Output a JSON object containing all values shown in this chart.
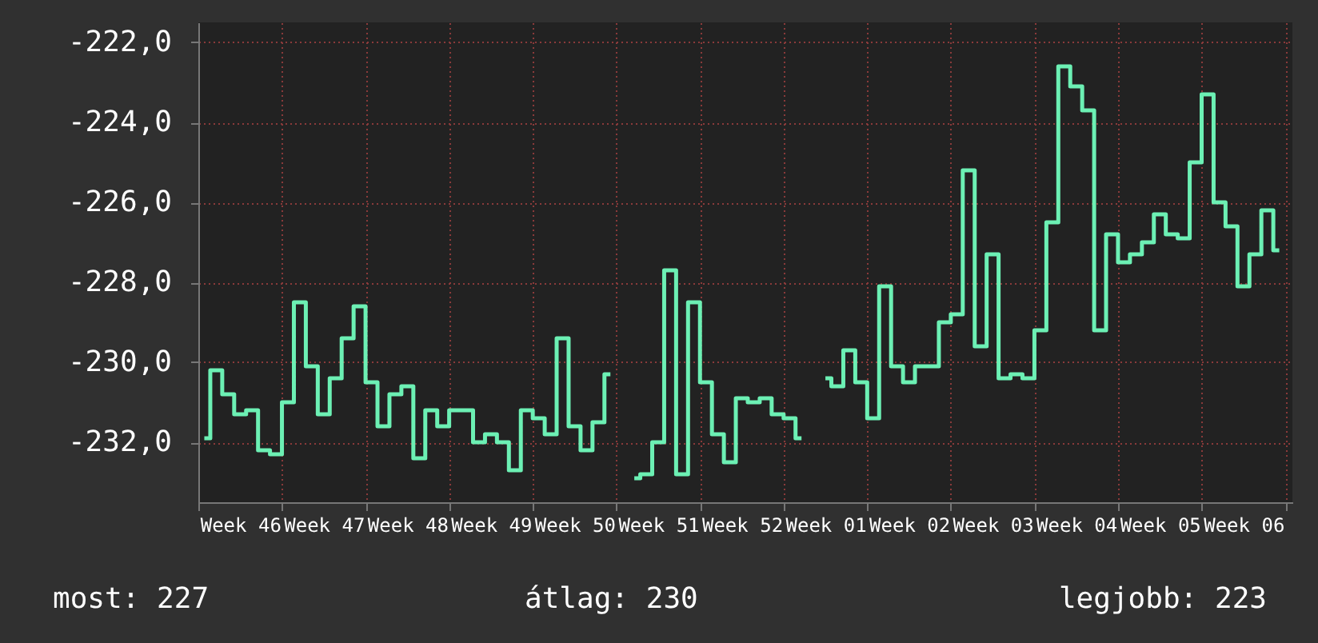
{
  "chart_data": {
    "type": "step",
    "categories": [
      null,
      null,
      null,
      "Week 46",
      null,
      null,
      null,
      null,
      null,
      null,
      "Week 47",
      null,
      null,
      null,
      null,
      null,
      null,
      "Week 48",
      null,
      null,
      null,
      null,
      null,
      null,
      "Week 49",
      null,
      null,
      null,
      null,
      null,
      null,
      "Week 50",
      null,
      null,
      null,
      null,
      null,
      null,
      "Week 51",
      null,
      null,
      null,
      null,
      null,
      null,
      "Week 52",
      null,
      null,
      null,
      null,
      null,
      null,
      "Week 01",
      null,
      null,
      null,
      null,
      null,
      null,
      "Week 02",
      null,
      null,
      null,
      null,
      null,
      null,
      "Week 03",
      null,
      null,
      null,
      null,
      null,
      null,
      "Week 04",
      null,
      null,
      null,
      null,
      null,
      null,
      "Week 05",
      null,
      null,
      null,
      null,
      null,
      null,
      "Week 06",
      null,
      null,
      null
    ],
    "series": [
      {
        "color": "#6cf0b4",
        "values": [
          -231.9,
          -230.2,
          -230.8,
          -231.3,
          -231.2,
          -232.2,
          -232.3,
          -231.0,
          -228.5,
          -230.1,
          -231.3,
          -230.4,
          -229.4,
          -228.6,
          -230.5,
          -231.6,
          -230.8,
          -230.6,
          -232.4,
          -231.2,
          -231.6,
          -231.2,
          -231.2,
          -232.0,
          -231.8,
          -232.0,
          -232.7,
          -231.2,
          -231.4,
          -231.8,
          -229.4,
          -231.6,
          -232.2,
          -231.5,
          -230.3,
          null,
          -232.9,
          -232.8,
          -232.0,
          -227.7,
          -232.8,
          -228.5,
          -230.5,
          -231.8,
          -232.5,
          -230.9,
          -231.0,
          -230.9,
          -231.3,
          -231.4,
          -231.9,
          null,
          -230.4,
          -230.6,
          -229.7,
          -230.5,
          -231.4,
          -228.1,
          -230.1,
          -230.5,
          -230.1,
          -230.1,
          -229.0,
          -228.8,
          -225.2,
          -229.6,
          -227.3,
          -230.4,
          -230.3,
          -230.4,
          -229.2,
          -226.5,
          -222.6,
          -223.1,
          -223.7,
          -229.2,
          -226.8,
          -227.5,
          -227.3,
          -227.0,
          -226.3,
          -226.8,
          -226.9,
          -225.0,
          -223.3,
          -226.0,
          -226.6,
          -228.1,
          -227.3,
          -226.2,
          -227.2
        ]
      }
    ],
    "ylim": [
      -233.5,
      -221.5
    ],
    "yticks": [
      {
        "value": -232,
        "label": "-232,0"
      },
      {
        "value": -230,
        "label": "-230,0"
      },
      {
        "value": -228,
        "label": "-228,0"
      },
      {
        "value": -226,
        "label": "-226,0"
      },
      {
        "value": -224,
        "label": "-224,0"
      },
      {
        "value": -222,
        "label": "-222,0"
      }
    ],
    "grid": true,
    "annotations": [
      "most: 227",
      "átlag: 230",
      "legjobb: 223"
    ]
  }
}
